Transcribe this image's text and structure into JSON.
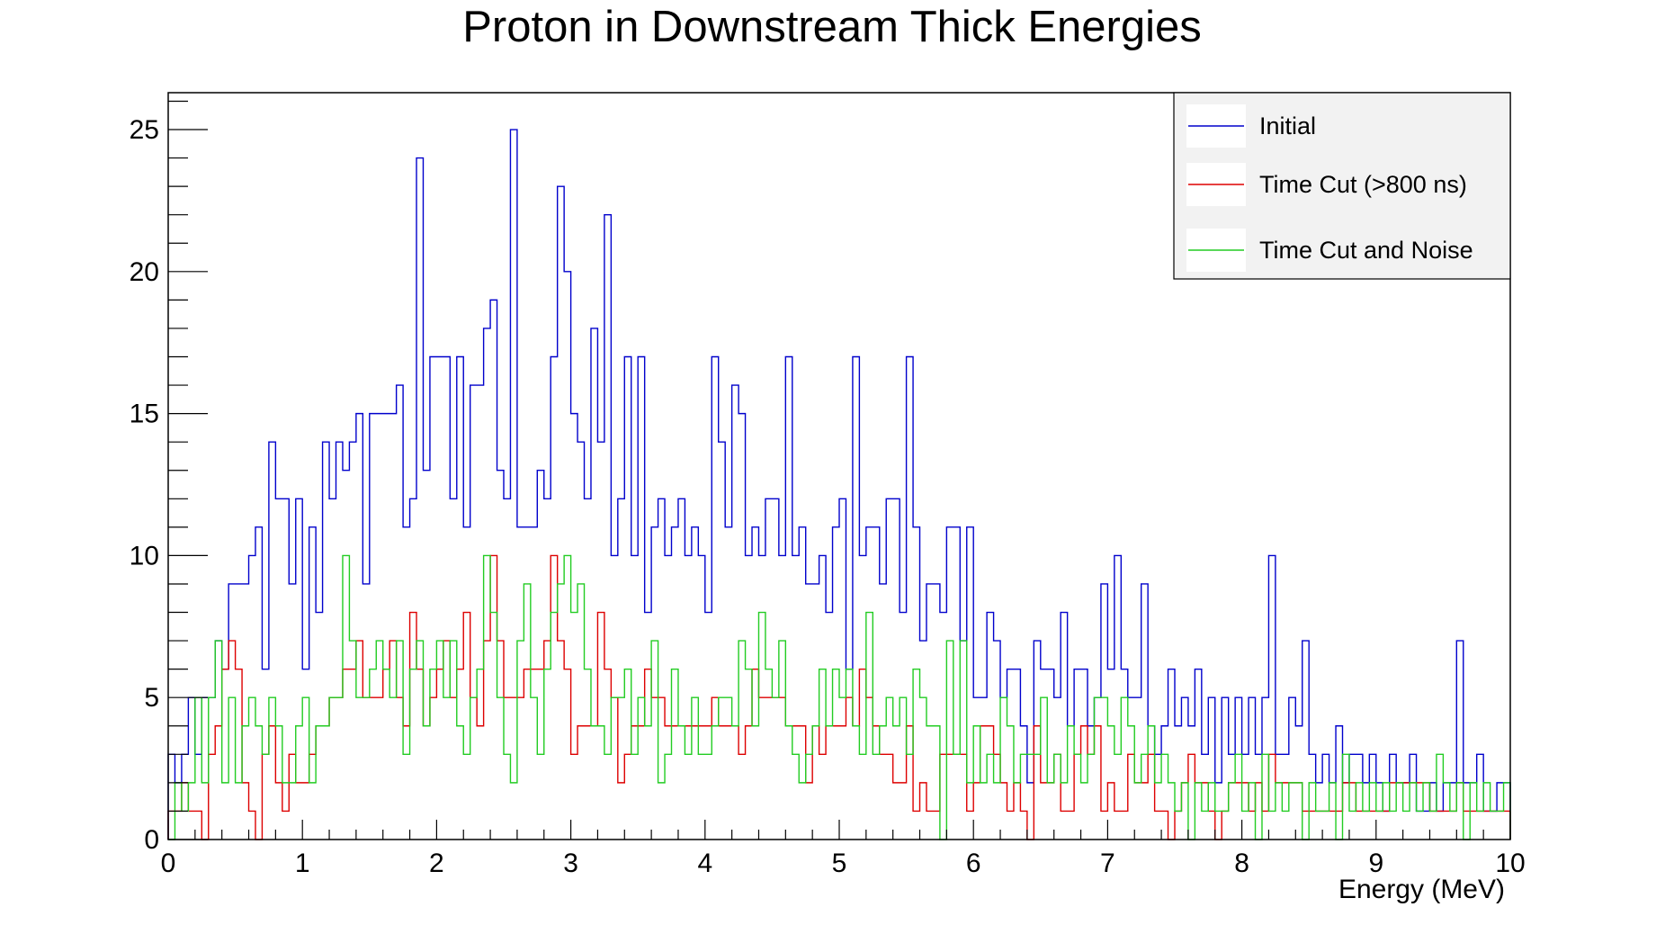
{
  "chart_data": {
    "type": "histogram",
    "title": "Proton in Downstream Thick Energies",
    "xlabel": "Energy (MeV)",
    "ylabel": "",
    "xlim": [
      0,
      10
    ],
    "ylim": [
      0,
      26.3
    ],
    "bins": 200,
    "x_ticks": [
      "0",
      "1",
      "2",
      "3",
      "4",
      "5",
      "6",
      "7",
      "8",
      "9",
      "10"
    ],
    "y_ticks": [
      "0",
      "5",
      "10",
      "15",
      "20",
      "25"
    ],
    "grid": false,
    "legend_position": "top-right",
    "series": [
      {
        "name": "Initial",
        "color": "#0000cc",
        "values": [
          3,
          2,
          3,
          5,
          3,
          5,
          5,
          7,
          6,
          9,
          9,
          9,
          10,
          11,
          6,
          14,
          12,
          12,
          9,
          12,
          6,
          11,
          8,
          14,
          12,
          14,
          13,
          14,
          15,
          9,
          15,
          15,
          15,
          15,
          16,
          11,
          12,
          24,
          13,
          17,
          17,
          17,
          12,
          17,
          11,
          16,
          16,
          18,
          19,
          13,
          12,
          25,
          11,
          11,
          11,
          13,
          12,
          17,
          23,
          20,
          15,
          14,
          12,
          18,
          14,
          22,
          10,
          12,
          17,
          10,
          17,
          8,
          11,
          12,
          10,
          11,
          12,
          10,
          11,
          10,
          8,
          17,
          14,
          11,
          16,
          15,
          10,
          11,
          10,
          12,
          12,
          10,
          17,
          10,
          11,
          9,
          9,
          10,
          8,
          11,
          12,
          6,
          17,
          10,
          11,
          11,
          9,
          12,
          12,
          8,
          17,
          11,
          7,
          9,
          9,
          8,
          11,
          11,
          7,
          11,
          5,
          5,
          8,
          7,
          5,
          6,
          6,
          4,
          2,
          7,
          6,
          6,
          5,
          8,
          4,
          6,
          6,
          4,
          5,
          9,
          6,
          10,
          6,
          5,
          5,
          9,
          4,
          3,
          4,
          6,
          4,
          5,
          4,
          6,
          3,
          5,
          2,
          5,
          3,
          5,
          3,
          5,
          3,
          5,
          10,
          3,
          3,
          5,
          4,
          7,
          3,
          2,
          3,
          2,
          4,
          2,
          3,
          3,
          2,
          3,
          2,
          1,
          3,
          2,
          2,
          3,
          1,
          1,
          2,
          1,
          2,
          2,
          7,
          2,
          2,
          3,
          1,
          1,
          2,
          2
        ]
      },
      {
        "name": "Time Cut (>800 ns)",
        "color": "#dd0000",
        "values": [
          1,
          1,
          2,
          1,
          1,
          0,
          3,
          4,
          6,
          7,
          6,
          2,
          1,
          0,
          3,
          4,
          2,
          1,
          3,
          2,
          2,
          3,
          4,
          4,
          5,
          5,
          6,
          6,
          7,
          5,
          5,
          5,
          6,
          7,
          5,
          4,
          8,
          6,
          4,
          5,
          6,
          7,
          5,
          6,
          8,
          5,
          4,
          7,
          10,
          7,
          5,
          5,
          5,
          6,
          6,
          6,
          7,
          10,
          7,
          6,
          3,
          4,
          4,
          4,
          8,
          6,
          5,
          2,
          3,
          4,
          4,
          6,
          5,
          5,
          4,
          4,
          4,
          4,
          4,
          4,
          4,
          5,
          4,
          4,
          4,
          3,
          4,
          6,
          5,
          5,
          5,
          5,
          4,
          4,
          4,
          2,
          4,
          3,
          4,
          4,
          4,
          5,
          4,
          6,
          5,
          4,
          3,
          3,
          2,
          2,
          4,
          1,
          2,
          1,
          1,
          3,
          3,
          3,
          3,
          1,
          2,
          4,
          4,
          3,
          2,
          1,
          2,
          1,
          0,
          4,
          2,
          2,
          3,
          1,
          1,
          3,
          4,
          3,
          4,
          1,
          2,
          1,
          1,
          3,
          2,
          2,
          3,
          1,
          1,
          0,
          1,
          2,
          3,
          2,
          2,
          1,
          0,
          1,
          2,
          2,
          2,
          1,
          2,
          1,
          3,
          2,
          2,
          2,
          2,
          1,
          1,
          1,
          1,
          1,
          1,
          2,
          2,
          1,
          1,
          1,
          1,
          1,
          2,
          2,
          2,
          2,
          2,
          2,
          1,
          1,
          1,
          1,
          2,
          1,
          1,
          1,
          1,
          1,
          1,
          1
        ]
      },
      {
        "name": "Time Cut and Noise",
        "color": "#22cc22",
        "values": [
          0,
          2,
          1,
          2,
          5,
          2,
          5,
          7,
          2,
          5,
          2,
          4,
          5,
          4,
          3,
          5,
          4,
          2,
          2,
          4,
          5,
          2,
          4,
          4,
          5,
          5,
          10,
          7,
          5,
          5,
          6,
          7,
          6,
          5,
          7,
          3,
          6,
          7,
          4,
          6,
          7,
          5,
          7,
          4,
          3,
          5,
          6,
          10,
          8,
          5,
          3,
          2,
          7,
          9,
          5,
          3,
          6,
          8,
          9,
          10,
          8,
          9,
          6,
          4,
          4,
          3,
          5,
          5,
          6,
          3,
          5,
          4,
          7,
          2,
          3,
          6,
          4,
          3,
          5,
          3,
          3,
          4,
          5,
          5,
          4,
          7,
          6,
          4,
          8,
          6,
          5,
          7,
          4,
          3,
          2,
          3,
          4,
          6,
          4,
          6,
          5,
          6,
          4,
          3,
          8,
          3,
          4,
          5,
          4,
          5,
          3,
          6,
          5,
          4,
          4,
          0,
          7,
          3,
          7,
          2,
          4,
          2,
          3,
          2,
          5,
          4,
          2,
          3,
          3,
          3,
          5,
          2,
          3,
          2,
          4,
          3,
          2,
          3,
          5,
          5,
          4,
          3,
          5,
          4,
          2,
          3,
          4,
          2,
          3,
          2,
          1,
          2,
          0,
          2,
          1,
          2,
          1,
          1,
          2,
          3,
          1,
          2,
          0,
          3,
          1,
          2,
          1,
          2,
          2,
          0,
          2,
          1,
          1,
          2,
          0,
          3,
          1,
          2,
          1,
          2,
          1,
          2,
          1,
          2,
          1,
          2,
          1,
          2,
          1,
          3,
          2,
          1,
          2,
          0,
          2,
          1,
          2,
          1,
          1,
          2
        ]
      }
    ]
  }
}
